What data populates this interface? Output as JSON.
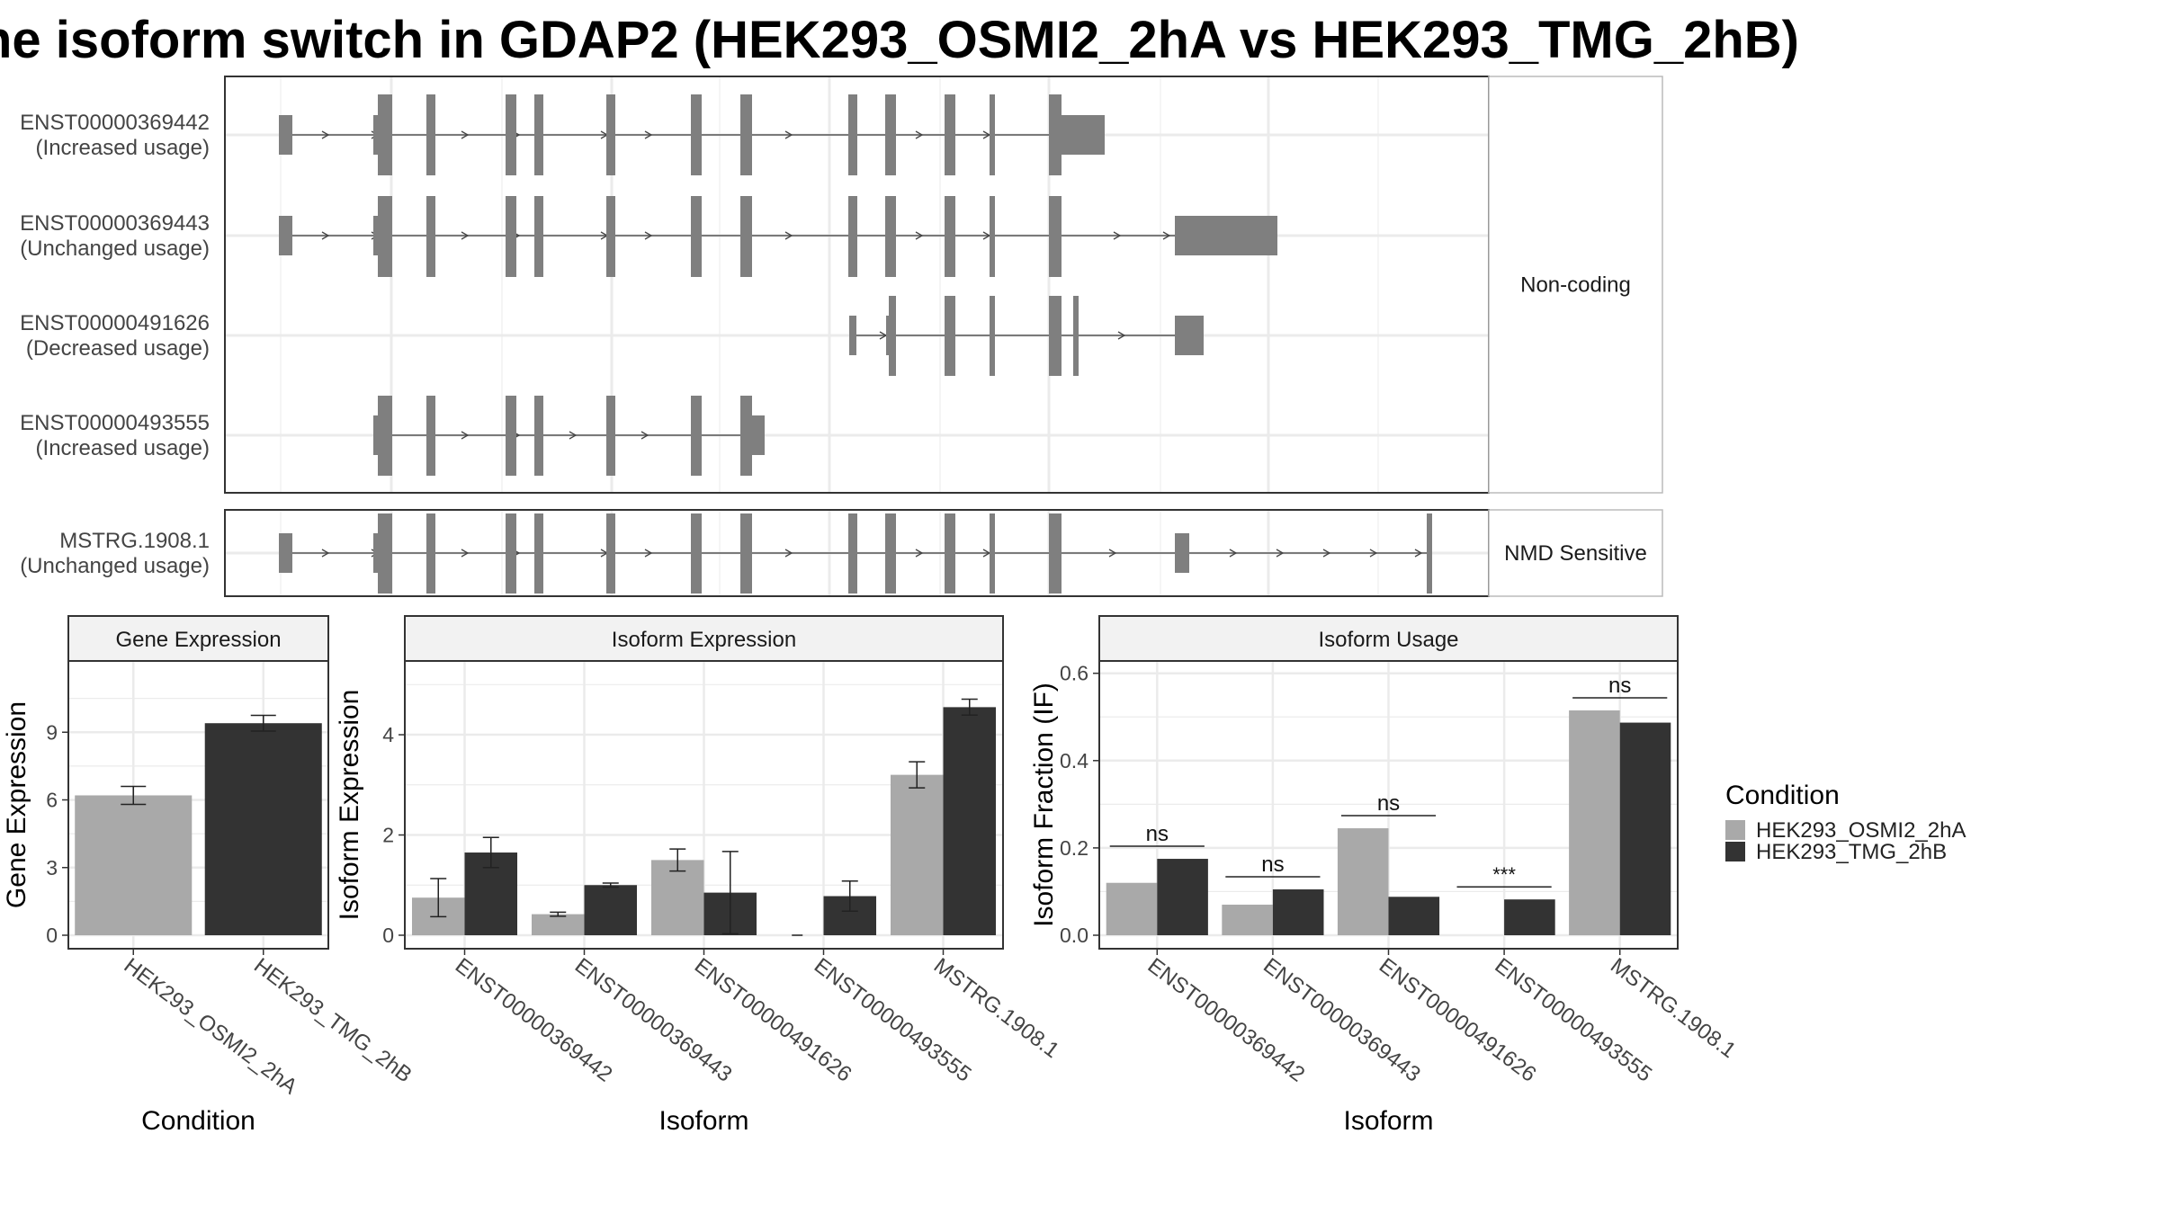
{
  "title": "he isoform switch in GDAP2 (HEK293_OSMI2_2hA vs HEK293_TMG_2hB)",
  "colors": {
    "osmi": "#a9a9a9",
    "tmg": "#333333",
    "exon": "#7f7f7f",
    "grid": "#ebebeb",
    "strip": "#f2f2f2"
  },
  "structure": {
    "facets": [
      {
        "label": "Non-coding",
        "transcripts": [
          {
            "id": "ENST00000369442",
            "usage": "(Increased usage)"
          },
          {
            "id": "ENST00000369443",
            "usage": "(Unchanged usage)"
          },
          {
            "id": "ENST00000491626",
            "usage": "(Decreased usage)"
          },
          {
            "id": "ENST00000493555",
            "usage": "(Increased usage)"
          }
        ]
      },
      {
        "label": "NMD Sensitive",
        "transcripts": [
          {
            "id": "MSTRG.1908.1",
            "usage": "(Unchanged usage)"
          }
        ]
      }
    ]
  },
  "chart_data": [
    {
      "type": "bar",
      "title": "Gene Expression",
      "xlabel": "Condition",
      "ylabel": "Gene Expression",
      "categories": [
        "HEK293_OSMI2_2hA",
        "HEK293_TMG_2hB"
      ],
      "values": [
        6.2,
        9.4
      ],
      "error": [
        0.4,
        0.35
      ],
      "ylim": [
        0,
        12
      ],
      "yticks": [
        0,
        3,
        6,
        9
      ]
    },
    {
      "type": "bar",
      "title": "Isoform Expression",
      "xlabel": "Isoform",
      "ylabel": "Isoform Expression",
      "categories": [
        "ENST00000369442",
        "ENST00000369443",
        "ENST00000491626",
        "ENST00000493555",
        "MSTRG.1908.1"
      ],
      "series": [
        {
          "name": "HEK293_OSMI2_2hA",
          "values": [
            0.75,
            0.42,
            1.5,
            0.0,
            3.2
          ],
          "error": [
            0.38,
            0.04,
            0.22,
            0.0,
            0.26
          ]
        },
        {
          "name": "HEK293_TMG_2hB",
          "values": [
            1.65,
            1.0,
            0.85,
            0.78,
            4.55
          ],
          "error": [
            0.3,
            0.04,
            0.82,
            0.3,
            0.16
          ]
        }
      ],
      "ylim": [
        0,
        5.4
      ],
      "yticks": [
        0,
        2,
        4
      ]
    },
    {
      "type": "bar",
      "title": "Isoform Usage",
      "xlabel": "Isoform",
      "ylabel": "Isoform Fraction (IF)",
      "categories": [
        "ENST00000369442",
        "ENST00000369443",
        "ENST00000491626",
        "ENST00000493555",
        "MSTRG.1908.1"
      ],
      "series": [
        {
          "name": "HEK293_OSMI2_2hA",
          "values": [
            0.12,
            0.07,
            0.245,
            0.0,
            0.515
          ]
        },
        {
          "name": "HEK293_TMG_2hB",
          "values": [
            0.175,
            0.105,
            0.088,
            0.082,
            0.487
          ]
        }
      ],
      "significance": [
        "ns",
        "ns",
        "ns",
        "***",
        "ns"
      ],
      "ylim": [
        0,
        0.62
      ],
      "yticks": [
        "0.0",
        "0.2",
        "0.4",
        "0.6"
      ]
    }
  ],
  "legend": {
    "title": "Condition",
    "items": [
      "HEK293_OSMI2_2hA",
      "HEK293_TMG_2hB"
    ]
  }
}
